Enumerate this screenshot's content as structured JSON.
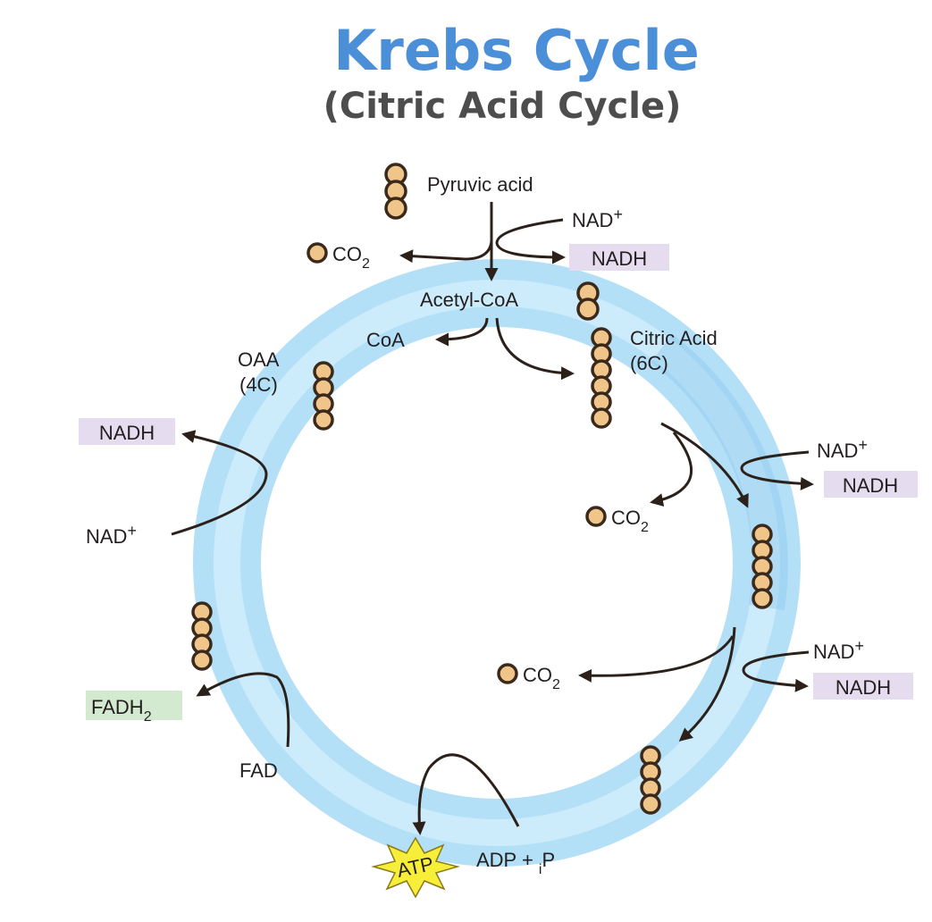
{
  "title": "Krebs Cycle",
  "subtitle": "(Citric Acid Cycle)",
  "labels": {
    "pyruvic_acid": "Pyruvic acid",
    "co2": "CO",
    "co2_sub": "2",
    "nad": "NAD",
    "nad_sup": "+",
    "nadh": "NADH",
    "acetyl_coa": "Acetyl-CoA",
    "coa": "CoA",
    "citric_acid": "Citric Acid",
    "citric_acid_c": "(6C)",
    "oaa": "OAA",
    "oaa_c": "(4C)",
    "fadh": "FADH",
    "fadh_sub": "2",
    "fad": "FAD",
    "atp": "ATP",
    "adp": "ADP + ",
    "adp_sub": "i",
    "adp_p": "P"
  },
  "colors": {
    "title": "#4a8fd8",
    "subtitle": "#4d4d4d",
    "ring": "#a9d8f5",
    "nadh_box": "#e6dcef",
    "fadh_box": "#d4ead0",
    "atp_star": "#f7ee3a",
    "bead_fill": "#f0c58a"
  }
}
